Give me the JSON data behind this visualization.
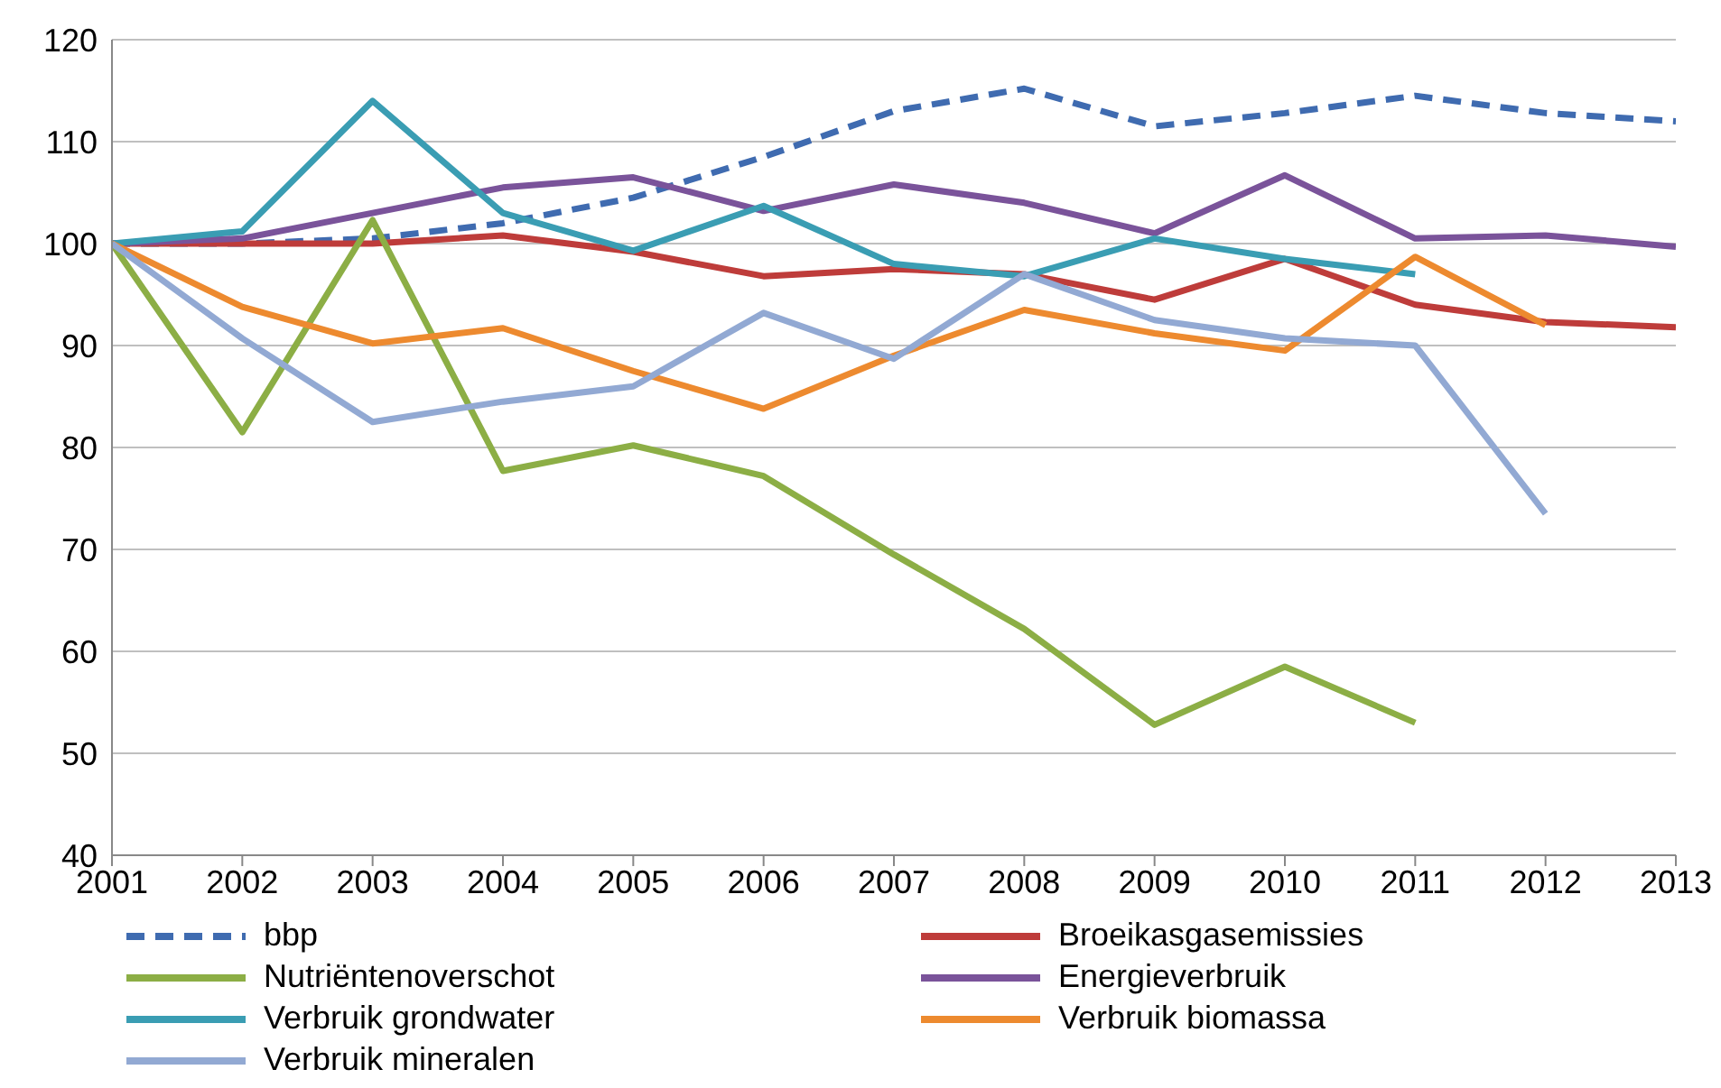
{
  "chart_data": {
    "type": "line",
    "x": [
      2001,
      2002,
      2003,
      2004,
      2005,
      2006,
      2007,
      2008,
      2009,
      2010,
      2011,
      2012,
      2013
    ],
    "xlim": [
      2001,
      2013
    ],
    "xticks": [
      2001,
      2002,
      2003,
      2004,
      2005,
      2006,
      2007,
      2008,
      2009,
      2010,
      2011,
      2012,
      2013
    ],
    "ylim": [
      40,
      120
    ],
    "yticks": [
      40,
      50,
      60,
      70,
      80,
      90,
      100,
      110,
      120
    ],
    "grid": "y",
    "legend": "bottom",
    "marker": "none",
    "series": [
      {
        "name": "bbp",
        "color": "#3f6bb0",
        "line_style": "dashed",
        "values": [
          100,
          100,
          100.5,
          102,
          104.5,
          108.5,
          113,
          115.2,
          111.5,
          112.8,
          114.5,
          112.8,
          112
        ]
      },
      {
        "name": "Broeikasgasemissies",
        "color": "#be3c3a",
        "values": [
          100,
          100,
          100,
          100.8,
          99.2,
          96.8,
          97.5,
          97,
          94.5,
          98.5,
          94,
          92.3,
          91.8
        ]
      },
      {
        "name": "Nutriëntenoverschot",
        "color": "#8cae45",
        "values": [
          100,
          81.5,
          102.3,
          77.7,
          80.2,
          77.2,
          69.5,
          62.2,
          52.8,
          58.5,
          53,
          null,
          null
        ]
      },
      {
        "name": "Energieverbruik",
        "color": "#7a539a",
        "values": [
          100,
          100.5,
          103,
          105.5,
          106.5,
          103.2,
          105.8,
          104,
          101,
          106.7,
          100.5,
          100.8,
          99.7
        ]
      },
      {
        "name": "Verbruik grondwater",
        "color": "#3a9db3",
        "values": [
          100,
          101.2,
          114,
          103,
          99.3,
          103.7,
          98,
          96.8,
          100.5,
          98.5,
          97,
          null,
          null
        ]
      },
      {
        "name": "Verbruik biomassa",
        "color": "#ed8a2f",
        "values": [
          100,
          93.8,
          90.2,
          91.7,
          87.5,
          83.8,
          89,
          93.5,
          91.2,
          89.5,
          98.7,
          92,
          null
        ]
      },
      {
        "name": "Verbruik mineralen",
        "color": "#92a9d3",
        "values": [
          100,
          90.7,
          82.5,
          84.5,
          86,
          93.2,
          88.7,
          97,
          92.5,
          90.7,
          90,
          73.5,
          null
        ]
      }
    ]
  }
}
